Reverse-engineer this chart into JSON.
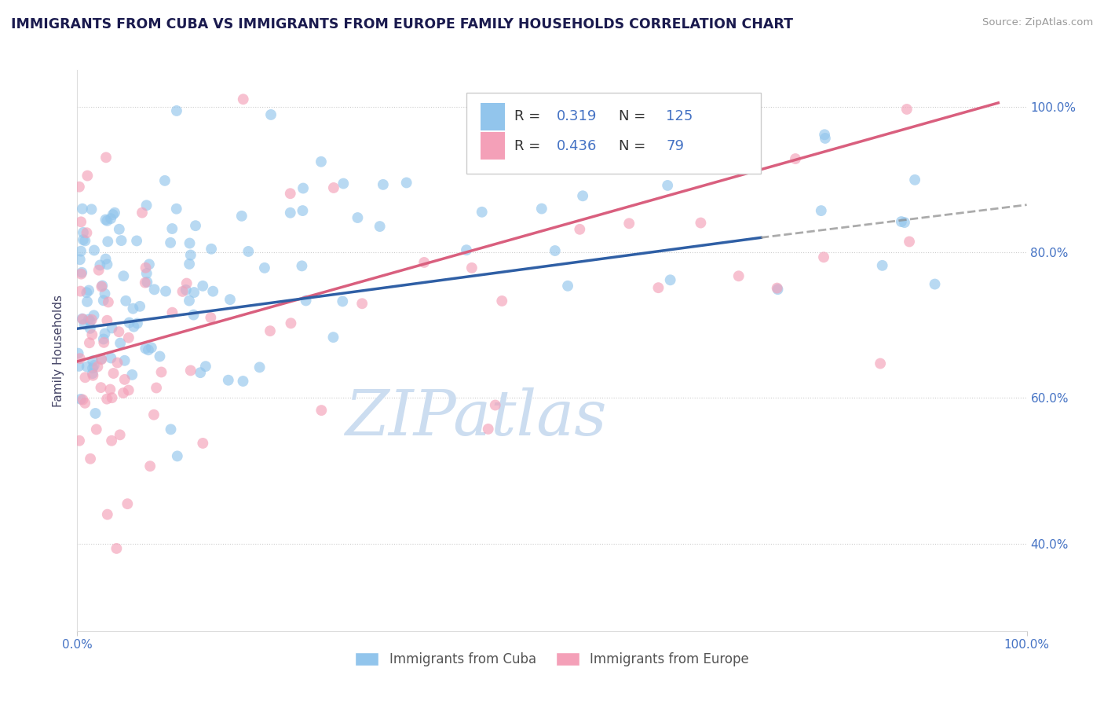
{
  "title": "IMMIGRANTS FROM CUBA VS IMMIGRANTS FROM EUROPE FAMILY HOUSEHOLDS CORRELATION CHART",
  "source": "Source: ZipAtlas.com",
  "ylabel": "Family Households",
  "legend_label_blue": "Immigrants from Cuba",
  "legend_label_pink": "Immigrants from Europe",
  "blue_R": 0.319,
  "blue_N": 125,
  "pink_R": 0.436,
  "pink_N": 79,
  "xlim": [
    0.0,
    1.0
  ],
  "ylim": [
    0.28,
    1.05
  ],
  "yticks": [
    0.4,
    0.6,
    0.8,
    1.0
  ],
  "ytick_labels": [
    "40.0%",
    "60.0%",
    "80.0%",
    "100.0%"
  ],
  "color_blue": "#92C5EC",
  "color_pink": "#F4A0B8",
  "color_blue_line": "#2F5FA5",
  "color_pink_line": "#D95F7E",
  "title_color": "#1a1a4e",
  "axis_label_color": "#4472C4",
  "watermark_color": "#ccddf0",
  "background_color": "#ffffff",
  "blue_line_start_x": 0.0,
  "blue_line_start_y": 0.695,
  "blue_line_end_x": 0.72,
  "blue_line_end_y": 0.82,
  "blue_line_dashed_end_x": 1.0,
  "blue_line_dashed_end_y": 0.865,
  "pink_line_start_x": 0.0,
  "pink_line_start_y": 0.65,
  "pink_line_end_x": 0.97,
  "pink_line_end_y": 1.005
}
